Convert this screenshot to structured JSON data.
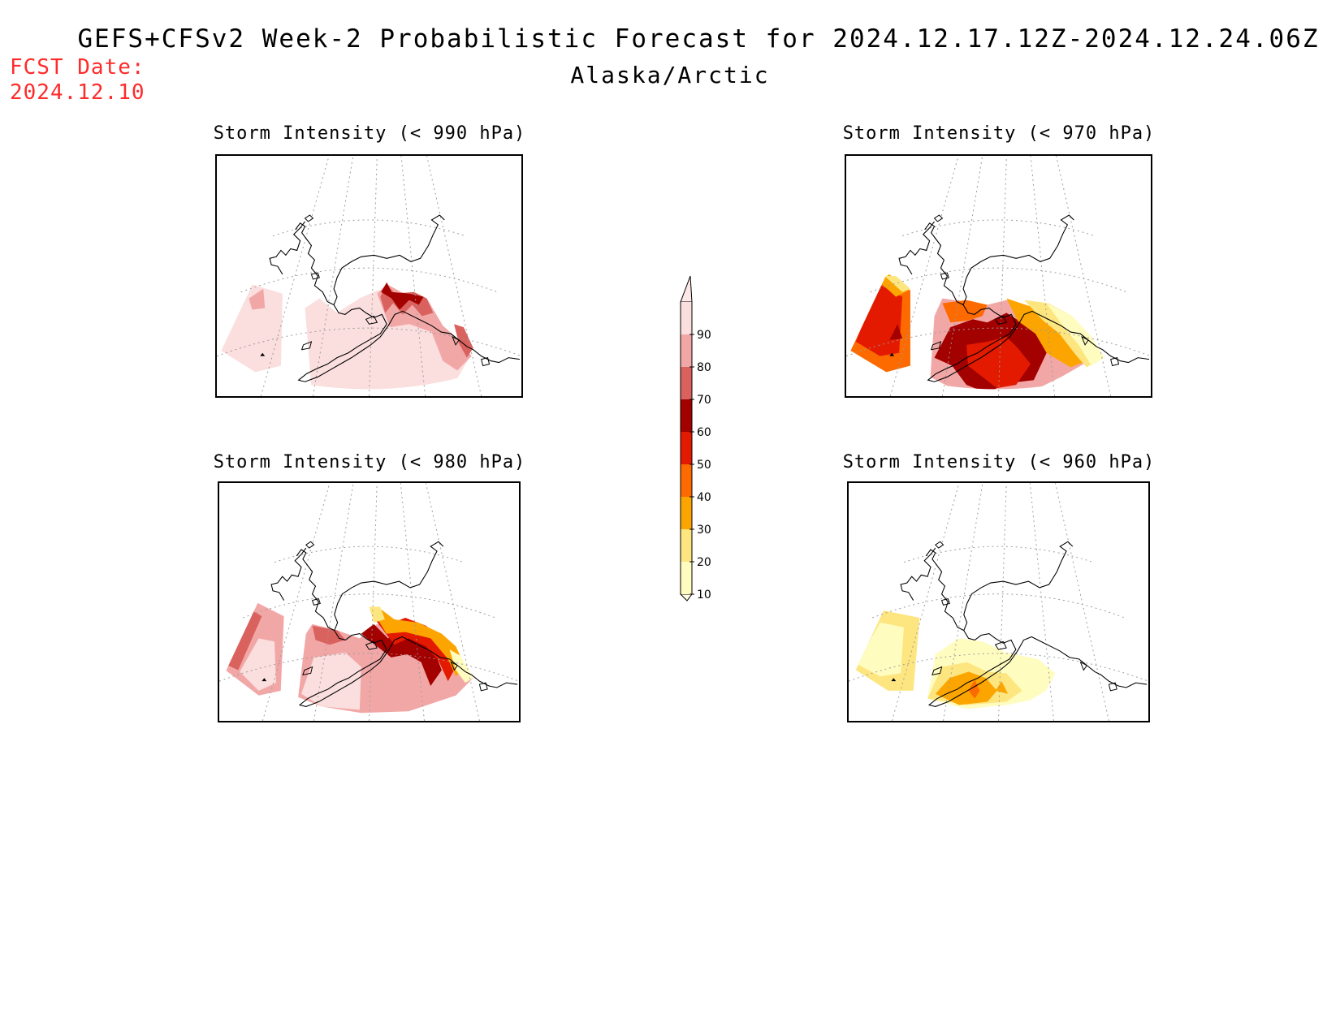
{
  "header": {
    "title": "GEFS+CFSv2 Week-2 Probabilistic Forecast for 2024.12.17.12Z-2024.12.24.06Z",
    "subtitle": "Alaska/Arctic",
    "fcst_label": "FCST Date:",
    "fcst_date": "2024.12.10"
  },
  "panels": [
    {
      "title": "Storm Intensity (< 990 hPa)",
      "threshold_hpa": 990
    },
    {
      "title": "Storm Intensity (< 970 hPa)",
      "threshold_hpa": 970
    },
    {
      "title": "Storm Intensity (< 980 hPa)",
      "threshold_hpa": 980
    },
    {
      "title": "Storm Intensity (< 960 hPa)",
      "threshold_hpa": 960
    }
  ],
  "colorbar": {
    "units_levels": [
      10,
      20,
      30,
      40,
      50,
      60,
      70,
      80,
      90
    ],
    "labels": [
      "10",
      "20",
      "30",
      "40",
      "50",
      "60",
      "70",
      "80",
      "90"
    ],
    "colors": [
      "#fffcbf",
      "#fde680",
      "#fca500",
      "#fd6a00",
      "#e31a00",
      "#a30000",
      "#d9625e",
      "#f2a7a7",
      "#fbdede"
    ]
  }
}
